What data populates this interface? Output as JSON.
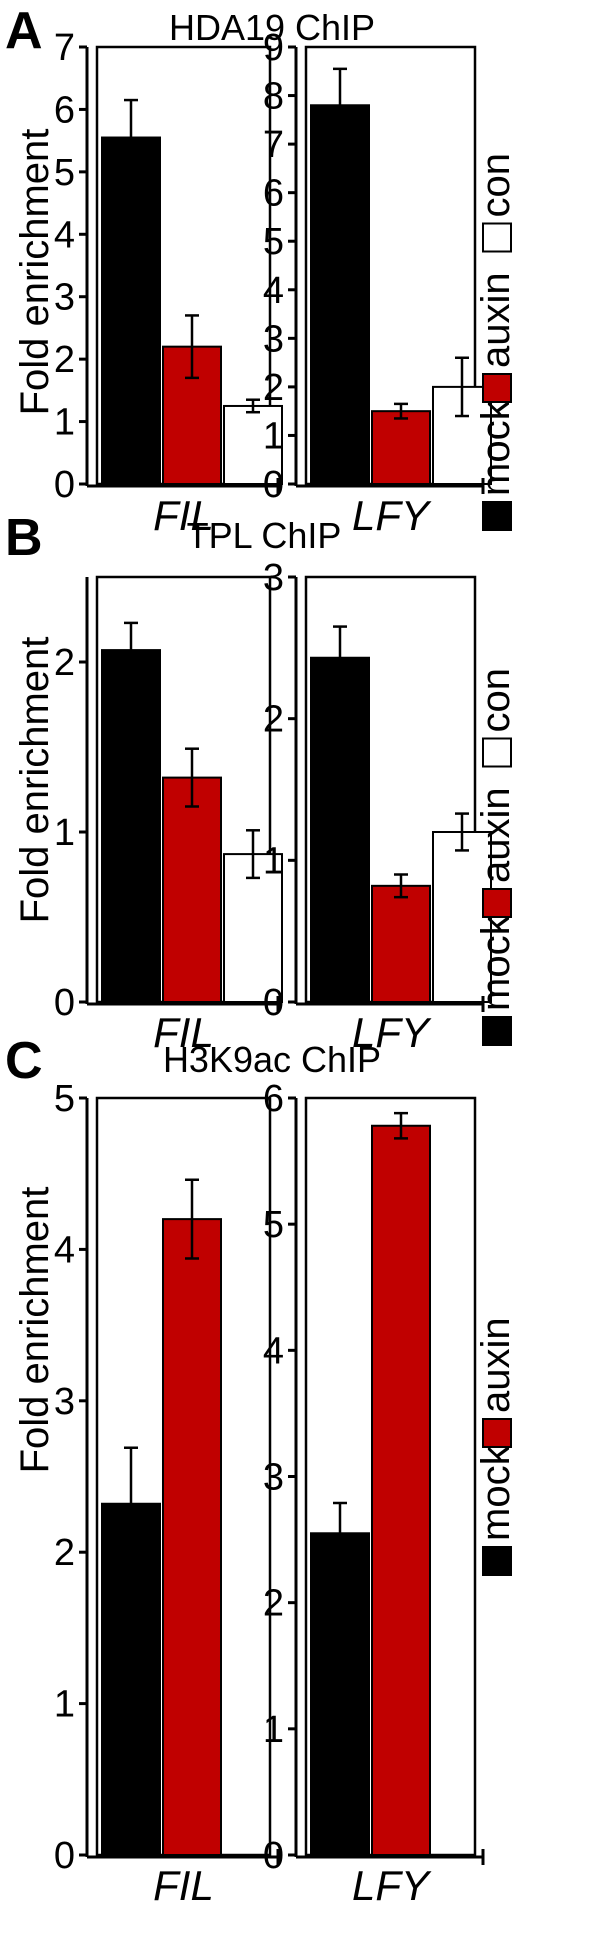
{
  "colors": {
    "mock": "#000000",
    "auxin": "#c00000",
    "con": "#ffffff"
  },
  "chart_data": [
    {
      "type": "bar",
      "letter": "A",
      "title": "HDA19 ChIP",
      "ylabel": "Fold enrichment",
      "legend": [
        "mock",
        "auxin",
        "con"
      ],
      "legend_placement": "right, vertical",
      "subplots": [
        {
          "gene": "FIL",
          "ylim": [
            0,
            7
          ],
          "ticks": [
            0,
            1,
            2,
            3,
            4,
            5,
            6,
            7
          ],
          "bars": [
            {
              "series": "mock",
              "value": 5.55,
              "error": 0.6
            },
            {
              "series": "auxin",
              "value": 2.2,
              "error": 0.5
            },
            {
              "series": "con",
              "value": 1.25,
              "error": 0.1
            }
          ]
        },
        {
          "gene": "LFY",
          "ylim": [
            0,
            9
          ],
          "ticks": [
            0,
            1,
            2,
            3,
            4,
            5,
            6,
            7,
            8,
            9
          ],
          "bars": [
            {
              "series": "mock",
              "value": 7.8,
              "error": 0.75
            },
            {
              "series": "auxin",
              "value": 1.5,
              "error": 0.15
            },
            {
              "series": "con",
              "value": 2.0,
              "error": 0.6
            }
          ]
        }
      ]
    },
    {
      "type": "bar",
      "letter": "B",
      "title": "TPL ChIP",
      "ylabel": "Fold enrichment",
      "legend": [
        "mock",
        "auxin",
        "con"
      ],
      "legend_placement": "right, vertical",
      "subplots": [
        {
          "gene": "FIL",
          "ylim": [
            0,
            2.5
          ],
          "ticks": [
            0,
            1,
            2
          ],
          "bars": [
            {
              "series": "mock",
              "value": 2.07,
              "error": 0.16
            },
            {
              "series": "auxin",
              "value": 1.32,
              "error": 0.17
            },
            {
              "series": "con",
              "value": 0.87,
              "error": 0.14
            }
          ]
        },
        {
          "gene": "LFY",
          "ylim": [
            0,
            3
          ],
          "ticks": [
            0,
            1,
            2,
            3
          ],
          "bars": [
            {
              "series": "mock",
              "value": 2.43,
              "error": 0.22
            },
            {
              "series": "auxin",
              "value": 0.82,
              "error": 0.08
            },
            {
              "series": "con",
              "value": 1.2,
              "error": 0.13
            }
          ]
        }
      ]
    },
    {
      "type": "bar",
      "letter": "C",
      "title": "H3K9ac ChIP",
      "ylabel": "Fold enrichment",
      "legend": [
        "mock",
        "auxin"
      ],
      "legend_placement": "right, vertical",
      "subplots": [
        {
          "gene": "FIL",
          "ylim": [
            0,
            5
          ],
          "ticks": [
            0,
            1,
            2,
            3,
            4,
            5
          ],
          "bars": [
            {
              "series": "mock",
              "value": 2.32,
              "error": 0.37
            },
            {
              "series": "auxin",
              "value": 4.2,
              "error": 0.26
            }
          ]
        },
        {
          "gene": "LFY",
          "ylim": [
            0,
            6
          ],
          "ticks": [
            0,
            1,
            2,
            3,
            4,
            5,
            6
          ],
          "bars": [
            {
              "series": "mock",
              "value": 2.55,
              "error": 0.24
            },
            {
              "series": "auxin",
              "value": 5.78,
              "error": 0.1
            }
          ]
        }
      ]
    }
  ]
}
